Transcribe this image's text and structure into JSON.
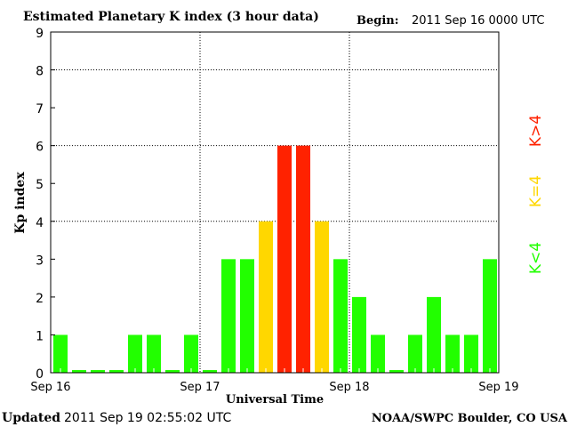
{
  "chart_data": {
    "type": "bar",
    "title": "Estimated Planetary K index (3 hour data)",
    "begin_label": "Begin:",
    "begin_value": "2011 Sep 16 0000 UTC",
    "xlabel": "Universal Time",
    "ylabel": "Kp index",
    "ylim": [
      0,
      9
    ],
    "yticks": [
      "0",
      "1",
      "2",
      "3",
      "4",
      "5",
      "6",
      "7",
      "8",
      "9"
    ],
    "xticks": [
      "Sep 16",
      "Sep 17",
      "Sep 18",
      "Sep 19"
    ],
    "values": [
      1,
      0,
      0,
      0,
      1,
      1,
      0,
      1,
      0,
      3,
      3,
      4,
      6,
      6,
      4,
      3,
      2,
      1,
      0,
      1,
      2,
      1,
      1,
      3
    ],
    "colors": {
      "low": "#22ff00",
      "mid": "#ffd700",
      "high": "#ff2200"
    },
    "legend": {
      "low": "K<4",
      "mid": "K=4",
      "high": "K>4"
    },
    "updated_label": "Updated",
    "updated_value": "2011 Sep 19 02:55:02 UTC",
    "credit": "NOAA/SWPC Boulder, CO USA"
  }
}
